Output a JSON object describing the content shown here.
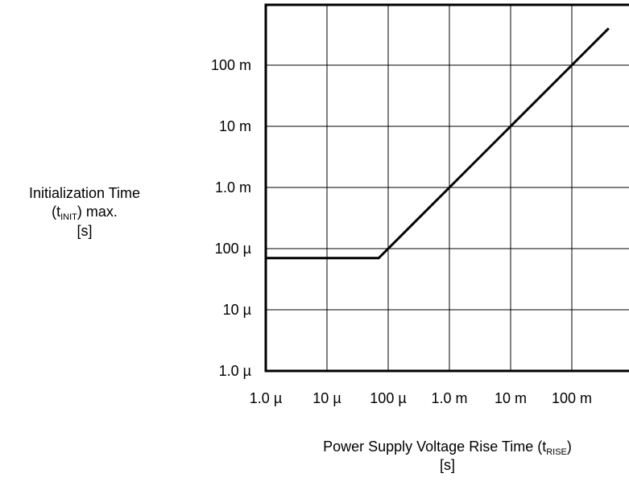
{
  "chart_data": {
    "type": "line",
    "x_scale": "log",
    "y_scale": "log",
    "xlim": [
      1e-06,
      1
    ],
    "ylim": [
      1e-06,
      1
    ],
    "x_tick_values": [
      1e-06,
      1e-05,
      0.0001,
      0.001,
      0.01,
      0.1
    ],
    "x_tick_labels": [
      "1.0 µ",
      "10 µ",
      "100 µ",
      "1.0 m",
      "10 m",
      "100 m"
    ],
    "y_tick_values": [
      1e-06,
      1e-05,
      0.0001,
      0.001,
      0.01,
      0.1
    ],
    "y_tick_labels": [
      "1.0  µ",
      "10  µ",
      "100  µ",
      "1.0 m",
      "10 m",
      "100 m"
    ],
    "grid": true,
    "series": [
      {
        "x": [
          1e-06,
          7e-05,
          0.0001,
          0.001,
          0.01,
          0.1,
          0.4
        ],
        "y": [
          7e-05,
          7e-05,
          0.0001,
          0.001,
          0.01,
          0.1,
          0.4
        ]
      }
    ],
    "ylabel": {
      "line1": "Initialization Time",
      "line2_pre": "(t",
      "line2_sub": "INIT",
      "line2_post": ") max.",
      "line3": "[s]"
    },
    "xlabel": {
      "line1_pre": "Power Supply Voltage Rise Time (t",
      "line1_sub": "RISE",
      "line1_post": ")",
      "line2": "[s]"
    }
  }
}
